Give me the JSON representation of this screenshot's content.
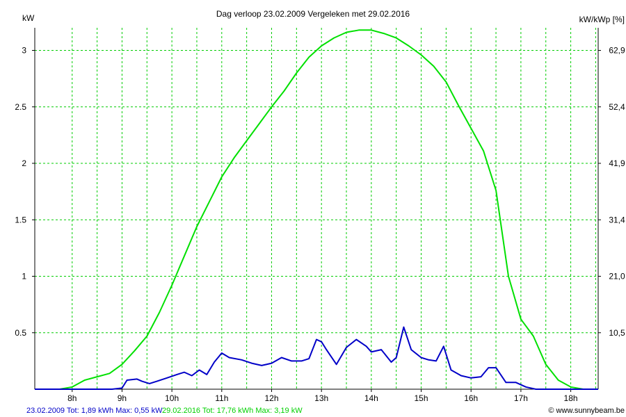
{
  "chart_data": {
    "type": "line",
    "title": "Dag  verloop 23.02.2009   Vergeleken met 29.02.2016",
    "ylabel_left": "kW",
    "ylabel_right": "kW/kWp [%]",
    "xlim": [
      7.25,
      18.55
    ],
    "ylim": [
      0,
      3.2
    ],
    "grid": true,
    "x_ticks": [
      8,
      9,
      10,
      11,
      12,
      13,
      14,
      15,
      16,
      17,
      18
    ],
    "x_tick_labels": [
      "8h",
      "9h",
      "10h",
      "11h",
      "12h",
      "13h",
      "14h",
      "15h",
      "16h",
      "17h",
      "18h"
    ],
    "y_ticks_left": [
      0.5,
      1,
      1.5,
      2,
      2.5,
      3
    ],
    "y_tick_labels_left": [
      "0.5",
      "1",
      "1.5",
      "2",
      "2.5",
      "3"
    ],
    "y_ticks_right_values": [
      0.5,
      1,
      1.5,
      2,
      2.5,
      3
    ],
    "y_tick_labels_right": [
      "10,5",
      "21,0",
      "31,4",
      "41,9",
      "52,4",
      "62,9"
    ],
    "series": [
      {
        "label": "29.02.2016 Tot: 17,76 kWh Max: 3,19 kW",
        "color": "#00e000",
        "x": [
          7.25,
          7.5,
          7.75,
          8.0,
          8.25,
          8.5,
          8.75,
          9.0,
          9.25,
          9.5,
          9.75,
          10.0,
          10.25,
          10.5,
          10.75,
          11.0,
          11.25,
          11.5,
          11.75,
          12.0,
          12.25,
          12.5,
          12.75,
          13.0,
          13.25,
          13.5,
          13.75,
          14.0,
          14.25,
          14.5,
          14.75,
          15.0,
          15.25,
          15.5,
          15.75,
          16.0,
          16.25,
          16.5,
          16.75,
          17.0,
          17.25,
          17.5,
          17.75,
          18.0,
          18.25,
          18.55
        ],
        "values": [
          0.0,
          0.0,
          0.0,
          0.02,
          0.08,
          0.11,
          0.14,
          0.22,
          0.34,
          0.47,
          0.68,
          0.92,
          1.18,
          1.44,
          1.66,
          1.88,
          2.05,
          2.2,
          2.35,
          2.5,
          2.64,
          2.8,
          2.94,
          3.04,
          3.11,
          3.16,
          3.18,
          3.18,
          3.15,
          3.11,
          3.04,
          2.96,
          2.86,
          2.72,
          2.51,
          2.31,
          2.11,
          1.76,
          1.0,
          0.62,
          0.47,
          0.22,
          0.08,
          0.02,
          0.0,
          0.0
        ]
      },
      {
        "label": "23.02.2009 Tot: 1,89 kWh Max: 0,55 kW",
        "color": "#0000c8",
        "x": [
          7.25,
          8.5,
          8.8,
          9.0,
          9.1,
          9.3,
          9.4,
          9.55,
          9.7,
          9.9,
          10.1,
          10.25,
          10.4,
          10.55,
          10.7,
          10.85,
          11.0,
          11.15,
          11.4,
          11.6,
          11.8,
          12.0,
          12.2,
          12.4,
          12.6,
          12.75,
          12.9,
          13.0,
          13.1,
          13.3,
          13.5,
          13.7,
          13.9,
          14.0,
          14.2,
          14.4,
          14.5,
          14.65,
          14.8,
          15.0,
          15.15,
          15.3,
          15.45,
          15.6,
          15.8,
          16.0,
          16.2,
          16.35,
          16.5,
          16.7,
          16.9,
          17.1,
          17.3,
          17.5,
          18.55
        ],
        "values": [
          0.0,
          0.0,
          0.0,
          0.01,
          0.08,
          0.09,
          0.07,
          0.05,
          0.07,
          0.1,
          0.13,
          0.15,
          0.12,
          0.17,
          0.13,
          0.24,
          0.32,
          0.28,
          0.26,
          0.23,
          0.21,
          0.23,
          0.28,
          0.25,
          0.25,
          0.27,
          0.44,
          0.42,
          0.35,
          0.22,
          0.37,
          0.44,
          0.38,
          0.33,
          0.35,
          0.24,
          0.28,
          0.55,
          0.35,
          0.28,
          0.26,
          0.25,
          0.38,
          0.17,
          0.12,
          0.1,
          0.11,
          0.19,
          0.19,
          0.06,
          0.06,
          0.02,
          0.0,
          0.0,
          0.0
        ]
      }
    ],
    "footer": {
      "series1_text": "23.02.2009 Tot: 1,89 kWh Max: 0,55 kW",
      "series2_text": "29.02.2016 Tot: 17,76 kWh Max: 3,19 kW",
      "credit": "© www.sunnybeam.be"
    }
  }
}
